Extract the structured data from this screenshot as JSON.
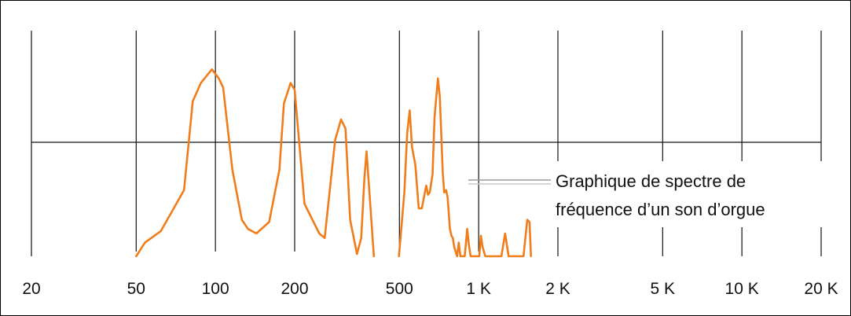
{
  "chart_data": {
    "type": "line",
    "title": "",
    "xlabel": "",
    "ylabel": "",
    "x_scale": "log",
    "xlim": [
      20,
      20000
    ],
    "ylim": [
      0,
      1
    ],
    "grid": true,
    "tick_values": [
      20,
      50,
      100,
      200,
      500,
      1000,
      2000,
      5000,
      10000,
      20000
    ],
    "tick_labels": [
      "20",
      "50",
      "100",
      "200",
      "500",
      "1 K",
      "2 K",
      "5 K",
      "10 K",
      "20 K"
    ],
    "reference_line_y": 0.5,
    "line_color": "#f07d1a",
    "annotation": {
      "lines": [
        "Graphique de spectre de",
        "fréquence d’un son d’orgue"
      ]
    },
    "series": [
      {
        "name": "",
        "points": [
          [
            50,
            0.0
          ],
          [
            54,
            0.06
          ],
          [
            62,
            0.11
          ],
          [
            76,
            0.29
          ],
          [
            82,
            0.68
          ],
          [
            88,
            0.76
          ],
          [
            97,
            0.82
          ],
          [
            103,
            0.78
          ],
          [
            107,
            0.74
          ],
          [
            116,
            0.38
          ],
          [
            126,
            0.16
          ],
          [
            133,
            0.12
          ],
          [
            143,
            0.1
          ],
          [
            160,
            0.15
          ],
          [
            175,
            0.38
          ],
          [
            182,
            0.67
          ],
          [
            193,
            0.76
          ],
          [
            200,
            0.73
          ],
          [
            218,
            0.23
          ],
          [
            248,
            0.1
          ],
          [
            260,
            0.08
          ],
          [
            285,
            0.51
          ],
          [
            300,
            0.6
          ],
          [
            312,
            0.56
          ],
          [
            325,
            0.16
          ],
          [
            345,
            0.01
          ],
          [
            358,
            0.08
          ],
          [
            368,
            0.34
          ],
          [
            375,
            0.46
          ],
          [
            400,
            0.0
          ]
        ]
      },
      {
        "name": "",
        "points": [
          [
            498,
            0.0
          ],
          [
            522,
            0.28
          ],
          [
            535,
            0.54
          ],
          [
            547,
            0.64
          ],
          [
            558,
            0.48
          ],
          [
            575,
            0.4
          ],
          [
            592,
            0.21
          ],
          [
            608,
            0.21
          ],
          [
            620,
            0.26
          ],
          [
            632,
            0.31
          ],
          [
            642,
            0.27
          ],
          [
            652,
            0.28
          ],
          [
            668,
            0.36
          ],
          [
            680,
            0.61
          ],
          [
            700,
            0.78
          ],
          [
            712,
            0.7
          ],
          [
            720,
            0.55
          ],
          [
            730,
            0.37
          ],
          [
            740,
            0.28
          ],
          [
            752,
            0.29
          ],
          [
            762,
            0.26
          ],
          [
            778,
            0.12
          ],
          [
            788,
            0.09
          ],
          [
            798,
            0.08
          ],
          [
            808,
            0.04
          ],
          [
            818,
            0.02
          ],
          [
            828,
            0.0
          ],
          [
            840,
            0.06
          ],
          [
            852,
            0.0
          ],
          [
            870,
            0.0
          ],
          [
            885,
            0.0
          ],
          [
            905,
            0.12
          ],
          [
            918,
            0.05
          ],
          [
            932,
            0.0
          ],
          [
            960,
            0.0
          ],
          [
            1005,
            0.0
          ],
          [
            1020,
            0.09
          ],
          [
            1035,
            0.04
          ],
          [
            1060,
            0.0
          ],
          [
            1150,
            0.0
          ],
          [
            1220,
            0.0
          ],
          [
            1260,
            0.1
          ],
          [
            1300,
            0.0
          ],
          [
            1480,
            0.0
          ],
          [
            1530,
            0.16
          ],
          [
            1560,
            0.15
          ],
          [
            1580,
            0.0
          ]
        ]
      }
    ]
  }
}
